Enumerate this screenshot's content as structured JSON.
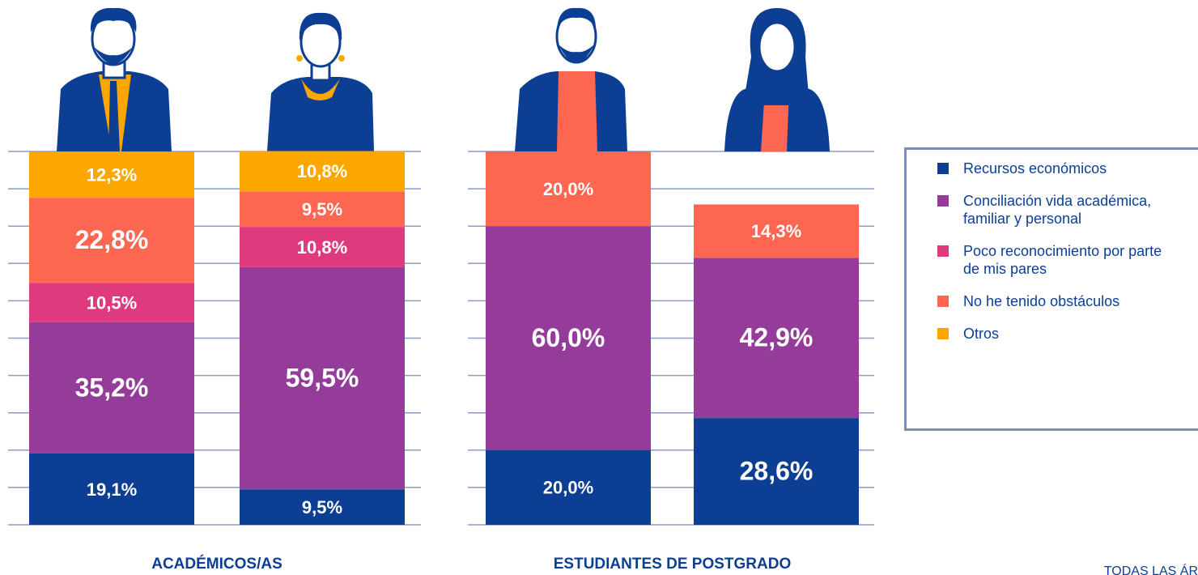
{
  "chart_data": {
    "type": "bar",
    "stacked": true,
    "categories": [
      null,
      null,
      null,
      null
    ],
    "groups": [
      {
        "label": "ACADÉMICOS/AS",
        "bars": [
          0,
          1
        ]
      },
      {
        "label": "ESTUDIANTES DE POSTGRADO",
        "bars": [
          2,
          3
        ]
      }
    ],
    "series": [
      {
        "name": "Recursos económicos",
        "color": "#0c3f94",
        "values": [
          19.1,
          9.5,
          20.0,
          28.6
        ],
        "value_labels": [
          "19,1%",
          "9,5%",
          "20,0%",
          "28,6%"
        ]
      },
      {
        "name": "Conciliación vida académica, familiar y personal",
        "color": "#953c9b",
        "values": [
          35.2,
          59.5,
          60.0,
          42.9
        ],
        "value_labels": [
          "35,2%",
          "59,5%",
          "60,0%",
          "42,9%"
        ]
      },
      {
        "name": "Poco reconocimiento por parte de mis pares",
        "color": "#e03a7e",
        "values": [
          10.5,
          10.8,
          null,
          null
        ],
        "value_labels": [
          "10,5%",
          "10,8%",
          null,
          null
        ]
      },
      {
        "name": "No he tenido obstáculos",
        "color": "#fd6650",
        "values": [
          22.8,
          9.5,
          20.0,
          14.3
        ],
        "value_labels": [
          "22,8%",
          "9,5%",
          "20,0%",
          "14,3%"
        ]
      },
      {
        "name": "Otros",
        "color": "#fca600",
        "values": [
          12.3,
          10.8,
          null,
          null
        ],
        "value_labels": [
          "12,3%",
          "10,8%",
          null,
          null
        ]
      }
    ],
    "ylim": [
      0,
      100
    ],
    "yticks": [
      0,
      10,
      20,
      30,
      40,
      50,
      60,
      70,
      80,
      90,
      100
    ],
    "grid": true,
    "legend": "right",
    "footer": "TODAS LAS ÁR"
  }
}
